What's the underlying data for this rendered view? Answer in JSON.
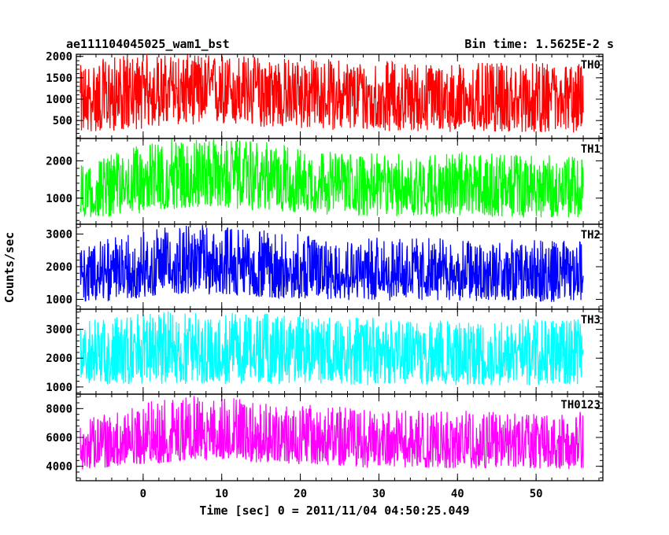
{
  "header": {
    "title_left": "ae111104045025_wam1_bst",
    "title_right": "Bin time: 1.5625E-2 s"
  },
  "axes": {
    "xlabel": "Time [sec] 0 = 2011/11/04 04:50:25.049",
    "ylabel": "Counts/sec"
  },
  "chart_data": [
    {
      "type": "line",
      "name": "TH0",
      "color": "#ff0000",
      "xlim": [
        -8.5,
        58.5
      ],
      "ylim": [
        80,
        2050
      ],
      "yticks": [
        500,
        1000,
        1500,
        2000
      ],
      "yticklabels": [
        "500",
        "1000",
        "1500",
        "2000"
      ],
      "x": [
        -8,
        -4,
        0,
        4,
        8,
        12,
        16,
        20,
        24,
        28,
        32,
        36,
        40,
        44,
        48,
        52,
        56
      ],
      "center": [
        900,
        1050,
        1150,
        1250,
        1250,
        1250,
        1200,
        1150,
        1100,
        1050,
        1000,
        1000,
        950,
        950,
        950,
        950,
        950
      ],
      "low": [
        200,
        250,
        300,
        400,
        400,
        350,
        330,
        300,
        280,
        250,
        250,
        240,
        230,
        220,
        220,
        220,
        200
      ],
      "high": [
        1800,
        2000,
        2050,
        2050,
        2050,
        2050,
        2000,
        1950,
        1950,
        1900,
        1900,
        1850,
        1850,
        1850,
        1850,
        1850,
        1850
      ],
      "grid": false
    },
    {
      "type": "line",
      "name": "TH1",
      "color": "#00ff00",
      "xlim": [
        -8.5,
        58.5
      ],
      "ylim": [
        300,
        2600
      ],
      "yticks": [
        1000,
        2000
      ],
      "yticklabels": [
        "1000",
        "2000"
      ],
      "x": [
        -8,
        -4,
        0,
        4,
        8,
        12,
        16,
        20,
        24,
        28,
        32,
        36,
        40,
        44,
        48,
        52,
        56
      ],
      "center": [
        1100,
        1300,
        1500,
        1650,
        1650,
        1600,
        1550,
        1450,
        1400,
        1350,
        1300,
        1300,
        1300,
        1300,
        1250,
        1250,
        1250
      ],
      "low": [
        450,
        500,
        600,
        700,
        750,
        700,
        650,
        600,
        550,
        500,
        500,
        500,
        500,
        500,
        480,
        480,
        450
      ],
      "high": [
        1900,
        2200,
        2450,
        2600,
        2600,
        2550,
        2500,
        2350,
        2250,
        2200,
        2200,
        2200,
        2250,
        2200,
        2200,
        2150,
        2100
      ],
      "grid": false
    },
    {
      "type": "line",
      "name": "TH2",
      "color": "#0000ff",
      "xlim": [
        -8.5,
        58.5
      ],
      "ylim": [
        700,
        3300
      ],
      "yticks": [
        1000,
        2000,
        3000
      ],
      "yticklabels": [
        "1000",
        "2000",
        "3000"
      ],
      "x": [
        -8,
        -4,
        0,
        4,
        8,
        12,
        16,
        20,
        24,
        28,
        32,
        36,
        40,
        44,
        48,
        52,
        56
      ],
      "center": [
        1600,
        1800,
        1950,
        2050,
        2100,
        2050,
        1950,
        1900,
        1850,
        1800,
        1800,
        1800,
        1750,
        1750,
        1750,
        1700,
        1700
      ],
      "low": [
        900,
        950,
        1050,
        1150,
        1150,
        1100,
        1050,
        1000,
        1000,
        950,
        950,
        950,
        950,
        950,
        950,
        900,
        900
      ],
      "high": [
        2600,
        2900,
        3100,
        3250,
        3300,
        3200,
        3100,
        3000,
        2950,
        2900,
        2900,
        2900,
        2850,
        2850,
        2850,
        2800,
        2800
      ],
      "grid": false
    },
    {
      "type": "line",
      "name": "TH3",
      "color": "#00ffff",
      "xlim": [
        -8.5,
        58.5
      ],
      "ylim": [
        750,
        3700
      ],
      "yticks": [
        1000,
        2000,
        3000
      ],
      "yticklabels": [
        "1000",
        "2000",
        "3000"
      ],
      "x": [
        -8,
        -4,
        0,
        4,
        8,
        12,
        16,
        20,
        24,
        28,
        32,
        36,
        40,
        44,
        48,
        52,
        56
      ],
      "center": [
        2200,
        2250,
        2300,
        2300,
        2300,
        2300,
        2300,
        2250,
        2250,
        2250,
        2200,
        2200,
        2200,
        2200,
        2200,
        2200,
        2200
      ],
      "low": [
        1050,
        1100,
        1100,
        1100,
        1100,
        1100,
        1100,
        1100,
        1100,
        1050,
        1050,
        1050,
        1050,
        1050,
        1050,
        1050,
        1050
      ],
      "high": [
        3300,
        3450,
        3550,
        3650,
        3650,
        3600,
        3550,
        3500,
        3450,
        3450,
        3400,
        3400,
        3400,
        3400,
        3400,
        3400,
        3350
      ],
      "grid": false
    },
    {
      "type": "line",
      "name": "TH0123",
      "color": "#ff00ff",
      "xlim": [
        -8.5,
        58.5
      ],
      "ylim": [
        3000,
        9000
      ],
      "yticks": [
        4000,
        6000,
        8000
      ],
      "yticklabels": [
        "4000",
        "6000",
        "8000"
      ],
      "x": [
        -8,
        -4,
        0,
        4,
        8,
        12,
        16,
        20,
        24,
        28,
        32,
        36,
        40,
        44,
        48,
        52,
        56
      ],
      "center": [
        5200,
        5500,
        5800,
        6000,
        6100,
        6050,
        5900,
        5750,
        5650,
        5550,
        5500,
        5450,
        5450,
        5400,
        5400,
        5400,
        5350
      ],
      "low": [
        3700,
        3900,
        4100,
        4300,
        4400,
        4300,
        4200,
        4100,
        4000,
        3900,
        3900,
        3900,
        3850,
        3850,
        3850,
        3800,
        3800
      ],
      "high": [
        7200,
        7800,
        8400,
        8900,
        9000,
        8800,
        8500,
        8300,
        8200,
        8000,
        7900,
        7900,
        7900,
        7800,
        7800,
        7800,
        7800
      ],
      "grid": false
    }
  ],
  "shared_x": {
    "ticks": [
      0,
      10,
      20,
      30,
      40,
      50
    ],
    "ticklabels": [
      "0",
      "10",
      "20",
      "30",
      "40",
      "50"
    ],
    "minor_step": 2
  }
}
